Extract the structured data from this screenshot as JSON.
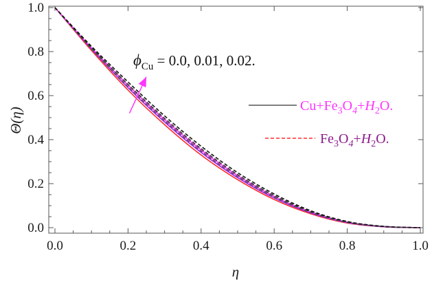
{
  "chart_data": {
    "type": "line",
    "xlabel": "η",
    "ylabel": "Θ(η)",
    "xlim": [
      0.0,
      1.0
    ],
    "ylim": [
      0.0,
      1.0
    ],
    "x_ticks": [
      "0.0",
      "0.2",
      "0.4",
      "0.6",
      "0.8",
      "1.0"
    ],
    "y_ticks": [
      "0.0",
      "0.2",
      "0.4",
      "0.6",
      "0.8",
      "1.0"
    ],
    "grid": false,
    "legend_position": "right-middle",
    "x": [
      0.0,
      0.1,
      0.2,
      0.3,
      0.4,
      0.5,
      0.6,
      0.7,
      0.8,
      0.9,
      1.0
    ],
    "series": [
      {
        "parameter": "0.0",
        "nanofluid": "Cu+Fe3O4+H2O",
        "style": "solid",
        "color": "#ff2a2a",
        "values": [
          1.0,
          0.805,
          0.625,
          0.468,
          0.33,
          0.218,
          0.128,
          0.063,
          0.021,
          0.004,
          0.0
        ]
      },
      {
        "parameter": "0.01",
        "nanofluid": "Cu+Fe3O4+H2O",
        "style": "solid",
        "color": "#a020f0",
        "values": [
          1.0,
          0.811,
          0.636,
          0.48,
          0.342,
          0.227,
          0.135,
          0.067,
          0.023,
          0.004,
          0.0
        ]
      },
      {
        "parameter": "0.02",
        "nanofluid": "Cu+Fe3O4+H2O",
        "style": "solid",
        "color": "#ff33ff",
        "values": [
          1.0,
          0.817,
          0.647,
          0.491,
          0.353,
          0.236,
          0.142,
          0.071,
          0.025,
          0.005,
          0.0
        ]
      },
      {
        "parameter": "0.0",
        "nanofluid": "Fe3O4+H2O",
        "style": "dashed",
        "color": "#555555",
        "values": [
          1.0,
          0.812,
          0.64,
          0.486,
          0.348,
          0.232,
          0.139,
          0.069,
          0.024,
          0.005,
          0.0
        ]
      },
      {
        "parameter": "0.01",
        "nanofluid": "Fe3O4+H2O",
        "style": "dashed",
        "color": "#333333",
        "values": [
          1.0,
          0.818,
          0.651,
          0.497,
          0.359,
          0.241,
          0.146,
          0.073,
          0.026,
          0.005,
          0.0
        ]
      },
      {
        "parameter": "0.02",
        "nanofluid": "Fe3O4+H2O",
        "style": "dashed",
        "color": "#111111",
        "values": [
          1.0,
          0.824,
          0.662,
          0.508,
          0.37,
          0.25,
          0.153,
          0.077,
          0.028,
          0.006,
          0.0
        ]
      }
    ],
    "annotation": {
      "symbol": "ϕ",
      "subscript": "Cu",
      "text": " = 0.0, 0.01, 0.02."
    },
    "legend": [
      {
        "line_color": "#555555",
        "line_style": "solid",
        "text_color": "#ff33ff",
        "parts": [
          {
            "t": "Cu+Fe"
          },
          {
            "t": "3",
            "sub": true
          },
          {
            "t": "O"
          },
          {
            "t": "4",
            "sub": true,
            "italic": true
          },
          {
            "t": "+"
          },
          {
            "t": "H",
            "italic": true
          },
          {
            "t": "2",
            "sub": true
          },
          {
            "t": "O."
          }
        ]
      },
      {
        "line_color": "#ff2a2a",
        "line_style": "dashed",
        "text_color": "#8b1a8b",
        "parts": [
          {
            "t": "Fe"
          },
          {
            "t": "3",
            "sub": true
          },
          {
            "t": "O"
          },
          {
            "t": "4",
            "sub": true,
            "italic": true
          },
          {
            "t": "+"
          },
          {
            "t": "H",
            "italic": true
          },
          {
            "t": "2",
            "sub": true
          },
          {
            "t": "O."
          }
        ]
      }
    ],
    "arrow_color": "#ff33ff"
  }
}
